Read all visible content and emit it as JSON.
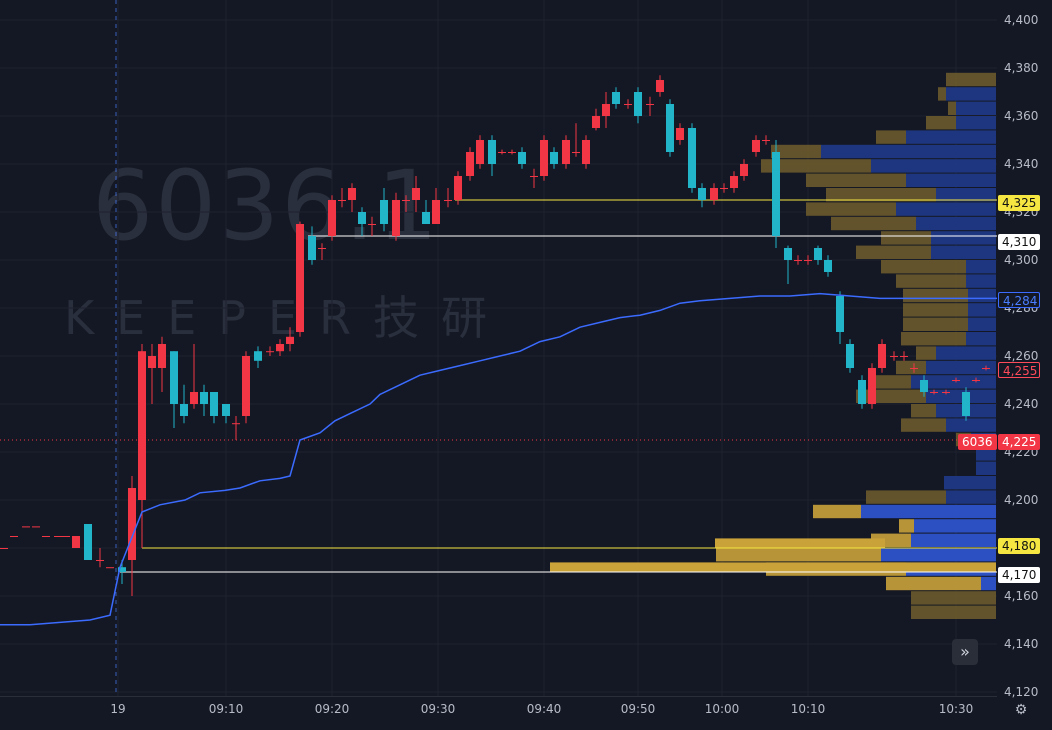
{
  "watermark": {
    "symbol": "6036.1",
    "brand": "KEEPER技研"
  },
  "y_axis": {
    "ticks": [
      "4,400",
      "4,380",
      "4,360",
      "4,340",
      "4,320",
      "4,300",
      "4,280",
      "4,260",
      "4,240",
      "4,220",
      "4,200",
      "4,180",
      "4,160",
      "4,140",
      "4,120"
    ]
  },
  "x_axis": {
    "ticks": [
      "19",
      "09:10",
      "09:20",
      "09:30",
      "09:40",
      "09:50",
      "10:00",
      "10:10",
      "10:30"
    ]
  },
  "price_badges": {
    "level_4325": "4,325",
    "level_4310": "4,310",
    "vwap": "4,284",
    "last_close_line": "4,255",
    "current": "4,225",
    "level_4180": "4,180",
    "level_4170": "4,170"
  },
  "symbol_label": "6036",
  "colors": {
    "up": "#f23645",
    "down": "#22b5c9",
    "vwap": "#3b6bff",
    "yellow_line": "#f5e642",
    "white_line": "#ffffff",
    "vp_blue": "#2b4fb5",
    "vp_gold": "#c9a23a"
  },
  "controls": {
    "scroll_right_icon": "double-chevron-right-icon",
    "settings_icon": "gear-icon"
  },
  "chart_data": {
    "type": "candlestick",
    "ylim": [
      4120,
      4400
    ],
    "x_labels": [
      "19",
      "09:10",
      "09:20",
      "09:30",
      "09:40",
      "09:50",
      "10:00",
      "10:10",
      "10:30"
    ],
    "horizontal_lines": [
      4325,
      4310,
      4180,
      4170
    ],
    "vwap_last": 4284,
    "current_price": 4225
  }
}
